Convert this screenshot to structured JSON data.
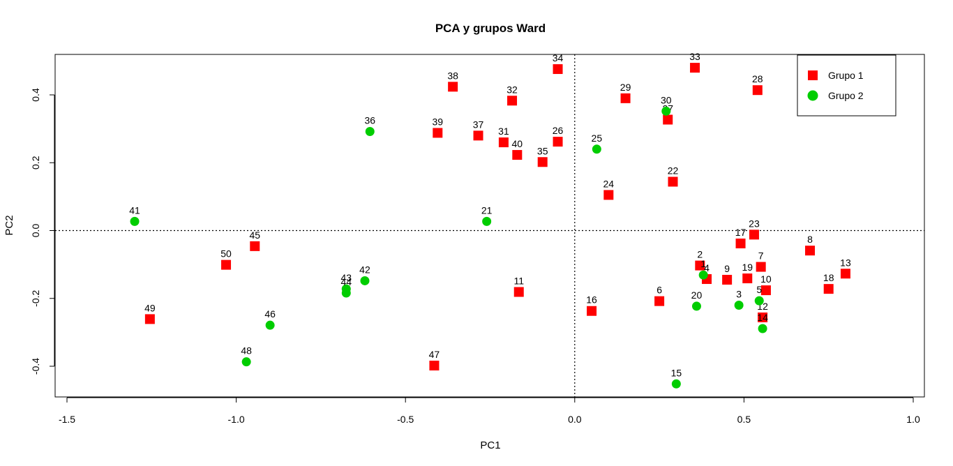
{
  "chart_data": {
    "type": "scatter",
    "title": "PCA y grupos Ward",
    "xlabel": "PC1",
    "ylabel": "PC2",
    "xlim": [
      -1.5,
      1.0
    ],
    "ylim": [
      -0.45,
      0.5
    ],
    "xticks": [
      -1.5,
      -1.0,
      -0.5,
      0.0,
      0.5,
      1.0
    ],
    "yticks": [
      -0.4,
      -0.2,
      0.0,
      0.2,
      0.4
    ],
    "reference_lines": {
      "x": 0.0,
      "y": 0.0,
      "style": "dotted"
    },
    "legend": {
      "position": "top-right"
    },
    "series": [
      {
        "name": "Grupo 1",
        "marker": "square",
        "color": "#ff0000",
        "points": [
          {
            "label": "2",
            "x": 0.37,
            "y": -0.103
          },
          {
            "label": "4",
            "x": 0.39,
            "y": -0.143
          },
          {
            "label": "6",
            "x": 0.25,
            "y": -0.208
          },
          {
            "label": "7",
            "x": 0.55,
            "y": -0.107
          },
          {
            "label": "8",
            "x": 0.695,
            "y": -0.059
          },
          {
            "label": "9",
            "x": 0.45,
            "y": -0.145
          },
          {
            "label": "10",
            "x": 0.565,
            "y": -0.176
          },
          {
            "label": "11",
            "x": -0.165,
            "y": -0.181
          },
          {
            "label": "12",
            "x": 0.555,
            "y": -0.256
          },
          {
            "label": "13",
            "x": 0.8,
            "y": -0.127
          },
          {
            "label": "16",
            "x": 0.05,
            "y": -0.237
          },
          {
            "label": "17",
            "x": 0.49,
            "y": -0.038
          },
          {
            "label": "18",
            "x": 0.75,
            "y": -0.172
          },
          {
            "label": "19",
            "x": 0.51,
            "y": -0.141
          },
          {
            "label": "22",
            "x": 0.29,
            "y": 0.144
          },
          {
            "label": "23",
            "x": 0.53,
            "y": -0.012
          },
          {
            "label": "24",
            "x": 0.1,
            "y": 0.105
          },
          {
            "label": "26",
            "x": -0.05,
            "y": 0.262
          },
          {
            "label": "27",
            "x": 0.275,
            "y": 0.327
          },
          {
            "label": "28",
            "x": 0.54,
            "y": 0.414
          },
          {
            "label": "29",
            "x": 0.15,
            "y": 0.39
          },
          {
            "label": "31",
            "x": -0.21,
            "y": 0.26
          },
          {
            "label": "32",
            "x": -0.185,
            "y": 0.383
          },
          {
            "label": "33",
            "x": 0.355,
            "y": 0.48
          },
          {
            "label": "34",
            "x": -0.05,
            "y": 0.476
          },
          {
            "label": "35",
            "x": -0.095,
            "y": 0.202
          },
          {
            "label": "37",
            "x": -0.285,
            "y": 0.28
          },
          {
            "label": "38",
            "x": -0.36,
            "y": 0.424
          },
          {
            "label": "39",
            "x": -0.405,
            "y": 0.288
          },
          {
            "label": "40",
            "x": -0.17,
            "y": 0.223
          },
          {
            "label": "45",
            "x": -0.945,
            "y": -0.046
          },
          {
            "label": "47",
            "x": -0.415,
            "y": -0.398
          },
          {
            "label": "49",
            "x": -1.255,
            "y": -0.261
          },
          {
            "label": "50",
            "x": -1.03,
            "y": -0.101
          }
        ]
      },
      {
        "name": "Grupo 2",
        "marker": "circle",
        "color": "#00cd00",
        "points": [
          {
            "label": "1",
            "x": 0.38,
            "y": -0.131
          },
          {
            "label": "3",
            "x": 0.485,
            "y": -0.22
          },
          {
            "label": "5",
            "x": 0.545,
            "y": -0.207
          },
          {
            "label": "14",
            "x": 0.555,
            "y": -0.289
          },
          {
            "label": "15",
            "x": 0.3,
            "y": -0.452
          },
          {
            "label": "20",
            "x": 0.36,
            "y": -0.223
          },
          {
            "label": "21",
            "x": -0.26,
            "y": 0.027
          },
          {
            "label": "25",
            "x": 0.065,
            "y": 0.24
          },
          {
            "label": "30",
            "x": 0.27,
            "y": 0.352
          },
          {
            "label": "36",
            "x": -0.605,
            "y": 0.292
          },
          {
            "label": "41",
            "x": -1.3,
            "y": 0.027
          },
          {
            "label": "42",
            "x": -0.62,
            "y": -0.148
          },
          {
            "label": "43",
            "x": -0.675,
            "y": -0.172
          },
          {
            "label": "44",
            "x": -0.675,
            "y": -0.184
          },
          {
            "label": "46",
            "x": -0.9,
            "y": -0.279
          },
          {
            "label": "48",
            "x": -0.97,
            "y": -0.387
          }
        ]
      }
    ]
  }
}
